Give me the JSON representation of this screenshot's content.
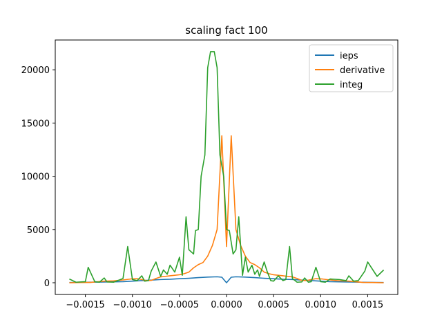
{
  "chart_data": {
    "type": "line",
    "title": "scaling fact 100",
    "xlabel": "",
    "ylabel": "",
    "xlim": [
      -0.00182,
      0.00182
    ],
    "ylim": [
      -1100,
      22800
    ],
    "xticks": [
      -0.0015,
      -0.001,
      -0.0005,
      0.0,
      0.0005,
      0.001,
      0.0015
    ],
    "xtick_labels": [
      "−0.0015",
      "−0.0010",
      "−0.0005",
      "0.0000",
      "0.0005",
      "0.0010",
      "0.0015"
    ],
    "yticks": [
      0,
      5000,
      10000,
      15000,
      20000
    ],
    "ytick_labels": [
      "0",
      "5000",
      "10000",
      "15000",
      "20000"
    ],
    "grid": false,
    "legend_position": "top-right",
    "series": [
      {
        "name": "ieps",
        "color": "#1f77b4",
        "x": [
          -0.00167,
          -0.0015,
          -0.0013,
          -0.0011,
          -0.001,
          -0.0009,
          -0.0008,
          -0.0007,
          -0.0006,
          -0.0005,
          -0.0004,
          -0.0003,
          -0.0002,
          -0.0001,
          -5e-05,
          0.0,
          5e-05,
          0.0001,
          0.0002,
          0.0003,
          0.0004,
          0.0005,
          0.0006,
          0.0007,
          0.0008,
          0.0009,
          0.001,
          0.0011,
          0.0013,
          0.0015,
          0.00167
        ],
        "y": [
          20,
          40,
          70,
          100,
          150,
          200,
          250,
          300,
          330,
          380,
          420,
          480,
          530,
          560,
          520,
          0,
          520,
          560,
          530,
          480,
          420,
          380,
          330,
          300,
          250,
          200,
          150,
          100,
          70,
          40,
          20
        ]
      },
      {
        "name": "derivative",
        "color": "#ff7f0e",
        "x": [
          -0.00167,
          -0.00155,
          -0.00145,
          -0.0013,
          -0.0012,
          -0.0011,
          -0.00102,
          -0.00095,
          -0.0009,
          -0.00085,
          -0.0008,
          -0.00075,
          -0.0007,
          -0.00065,
          -0.0006,
          -0.00055,
          -0.0005,
          -0.00045,
          -0.0004,
          -0.00035,
          -0.0003,
          -0.00025,
          -0.0002,
          -0.00015,
          -0.0001,
          -5e-05,
          0.0,
          5e-05,
          0.0001,
          0.00015,
          0.0002,
          0.00025,
          0.0003,
          0.00035,
          0.0004,
          0.00045,
          0.0005,
          0.00055,
          0.0006,
          0.00065,
          0.0007,
          0.00075,
          0.0008,
          0.00085,
          0.0009,
          0.00095,
          0.00102,
          0.0011,
          0.0012,
          0.0013,
          0.00145,
          0.00155,
          0.00167
        ],
        "y": [
          0,
          20,
          30,
          150,
          180,
          260,
          350,
          380,
          300,
          200,
          220,
          400,
          550,
          600,
          650,
          700,
          750,
          850,
          1000,
          1400,
          1700,
          1900,
          2500,
          3500,
          5000,
          13800,
          3400,
          13800,
          5000,
          3500,
          2500,
          1900,
          1700,
          1400,
          1000,
          850,
          750,
          700,
          650,
          600,
          550,
          400,
          220,
          200,
          300,
          380,
          350,
          260,
          180,
          150,
          30,
          20,
          0
        ]
      },
      {
        "name": "integ",
        "color": "#2ca02c",
        "x": [
          -0.00167,
          -0.0016,
          -0.0015,
          -0.00147,
          -0.0014,
          -0.00135,
          -0.0013,
          -0.00127,
          -0.0012,
          -0.0011,
          -0.00105,
          -0.001,
          -0.00095,
          -0.0009,
          -0.00087,
          -0.00083,
          -0.0008,
          -0.00075,
          -0.0007,
          -0.00067,
          -0.00063,
          -0.0006,
          -0.00055,
          -0.0005,
          -0.00047,
          -0.00043,
          -0.0004,
          -0.00035,
          -0.00033,
          -0.0003,
          -0.00027,
          -0.00023,
          -0.0002,
          -0.00017,
          -0.00013,
          -0.0001,
          -7e-05,
          -3e-05,
          0.0,
          3e-05,
          7e-05,
          0.0001,
          0.00013,
          0.00017,
          0.0002,
          0.00023,
          0.00027,
          0.0003,
          0.00033,
          0.00035,
          0.0004,
          0.00043,
          0.00047,
          0.0005,
          0.00055,
          0.0006,
          0.00063,
          0.00067,
          0.0007,
          0.00075,
          0.0008,
          0.00083,
          0.00087,
          0.0009,
          0.00095,
          0.001,
          0.00105,
          0.0011,
          0.0012,
          0.00127,
          0.0013,
          0.00135,
          0.0014,
          0.00147,
          0.0015,
          0.0016,
          0.00167
        ],
        "y": [
          350,
          50,
          100,
          1450,
          100,
          50,
          450,
          80,
          50,
          400,
          3400,
          300,
          200,
          650,
          150,
          200,
          1100,
          1950,
          600,
          1200,
          800,
          1650,
          1000,
          2400,
          700,
          6200,
          3100,
          2700,
          4900,
          5000,
          10000,
          12000,
          20200,
          21700,
          21700,
          20200,
          12000,
          10000,
          5000,
          4900,
          2700,
          3100,
          6200,
          700,
          2400,
          1000,
          1650,
          800,
          1200,
          600,
          1950,
          1100,
          200,
          150,
          650,
          200,
          300,
          3400,
          400,
          50,
          80,
          450,
          50,
          100,
          1450,
          100,
          50,
          350,
          300,
          200,
          650,
          150,
          200,
          1100,
          1950,
          600,
          1200
        ]
      }
    ]
  }
}
